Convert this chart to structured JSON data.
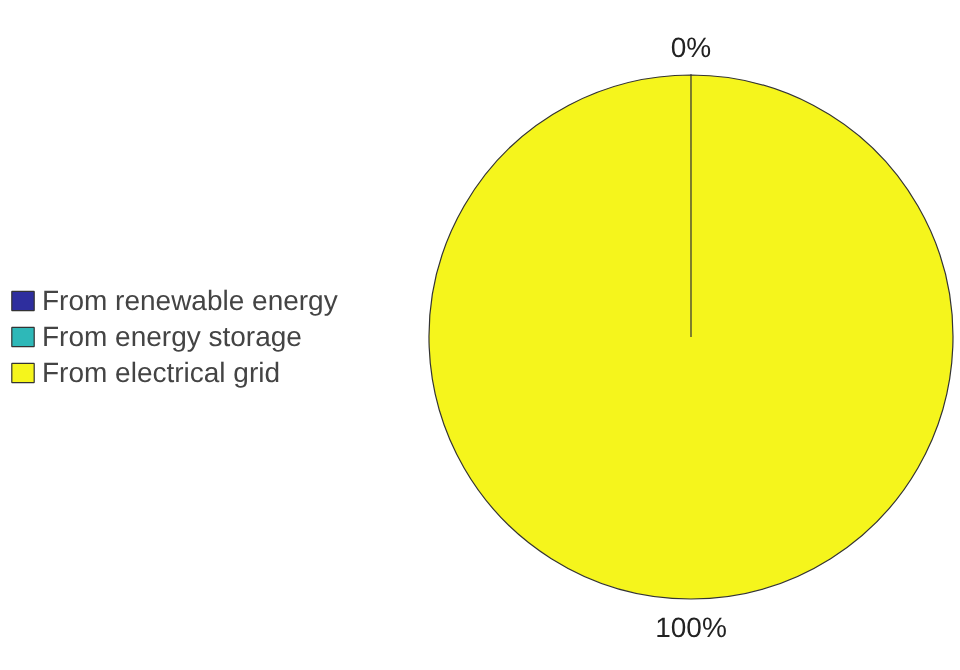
{
  "chart_data": {
    "type": "pie",
    "categories": [
      "From renewable energy",
      "From energy storage",
      "From electrical grid"
    ],
    "values": [
      0,
      0,
      100
    ],
    "colors": [
      "#2e2e9e",
      "#2eb8b8",
      "#f5f51c"
    ],
    "value_labels": [
      "0%",
      null,
      "100%"
    ],
    "legend": "left"
  }
}
